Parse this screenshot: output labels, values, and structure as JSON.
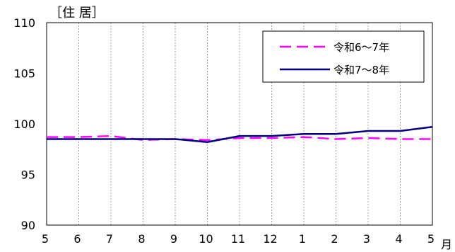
{
  "chart_data": {
    "type": "line",
    "title": "［住 居］",
    "x_unit": "月",
    "categories": [
      "5",
      "6",
      "7",
      "8",
      "9",
      "10",
      "11",
      "12",
      "1",
      "2",
      "3",
      "4",
      "5"
    ],
    "ylim": [
      90,
      110
    ],
    "yticks": [
      90,
      95,
      100,
      105,
      110
    ],
    "grid": {
      "vertical": true,
      "horizontal": false
    },
    "legend_position": "top-right",
    "series": [
      {
        "name": "令和6～7年",
        "color": "#ff00ff",
        "style": "dashed",
        "values": [
          98.7,
          98.7,
          98.8,
          98.4,
          98.5,
          98.4,
          98.6,
          98.6,
          98.7,
          98.5,
          98.6,
          98.5,
          98.5
        ]
      },
      {
        "name": "令和7～8年",
        "color": "#000080",
        "style": "solid",
        "values": [
          98.5,
          98.5,
          98.5,
          98.5,
          98.5,
          98.2,
          98.8,
          98.8,
          99.0,
          99.0,
          99.3,
          99.3,
          99.7
        ]
      }
    ]
  }
}
